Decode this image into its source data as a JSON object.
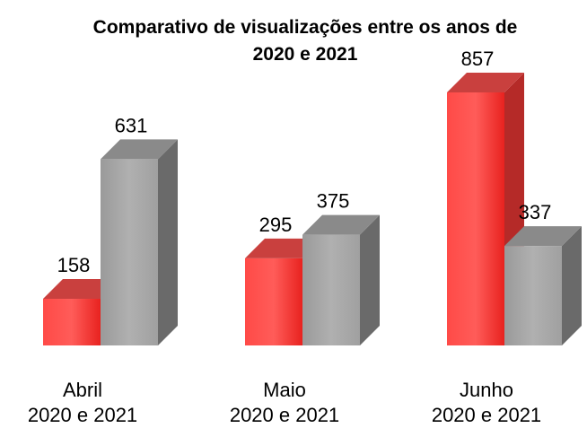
{
  "chart_data": {
    "type": "bar3d",
    "title": "Comparativo de visualizações entre os anos de 2020 e 2021",
    "categories": [
      "Abril\n2020 e 2021",
      "Maio\n2020 e 2021",
      "Junho\n2020 e 2021"
    ],
    "series": [
      {
        "color": "#e8221f",
        "values": [
          158,
          295,
          857
        ]
      },
      {
        "color": "#a3a3a3",
        "values": [
          631,
          375,
          337
        ]
      }
    ]
  }
}
